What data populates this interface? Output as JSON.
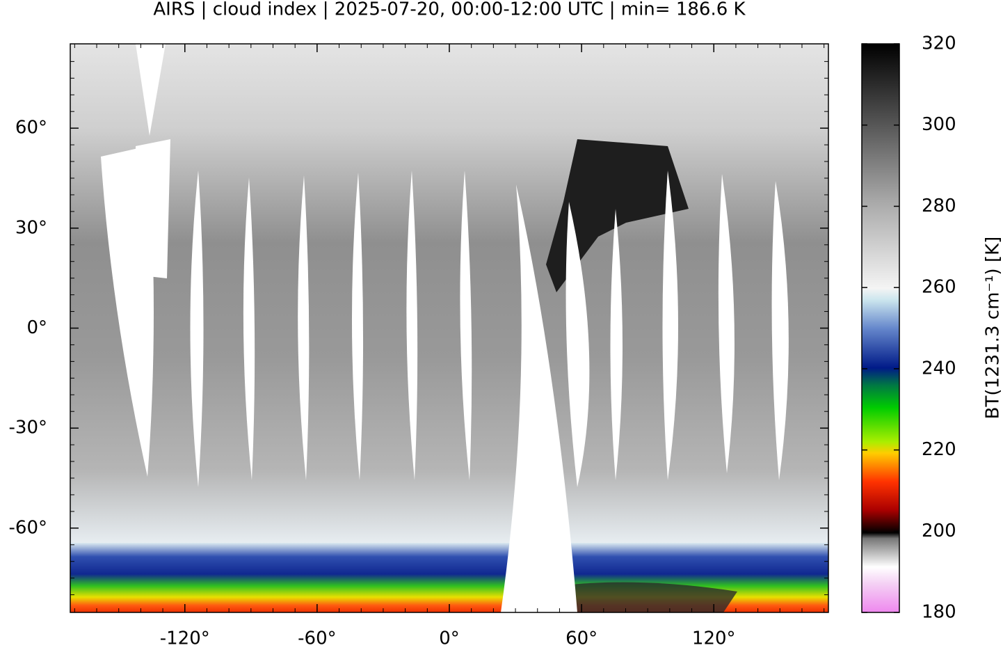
{
  "title": "AIRS | cloud index | 2025-07-20, 00:00-12:00 UTC | min= 186.6 K",
  "map": {
    "xlim": [
      -172,
      172
    ],
    "ylim": [
      -85.3,
      85.3
    ],
    "xticks": [
      {
        "value": -120,
        "label": "-120°"
      },
      {
        "value": -60,
        "label": "-60°"
      },
      {
        "value": 0,
        "label": "0°"
      },
      {
        "value": 60,
        "label": "60°"
      },
      {
        "value": 120,
        "label": "120°"
      }
    ],
    "yticks": [
      {
        "value": -60,
        "label": "-60°"
      },
      {
        "value": -30,
        "label": "-30°"
      },
      {
        "value": 0,
        "label": "0°"
      },
      {
        "value": 30,
        "label": "30°"
      },
      {
        "value": 60,
        "label": "60°"
      }
    ]
  },
  "colorbar": {
    "label": "BT(1231.3 cm⁻¹) [K]",
    "lim": [
      180,
      320
    ],
    "ticks": [
      180,
      200,
      220,
      240,
      260,
      280,
      300,
      320
    ]
  }
}
